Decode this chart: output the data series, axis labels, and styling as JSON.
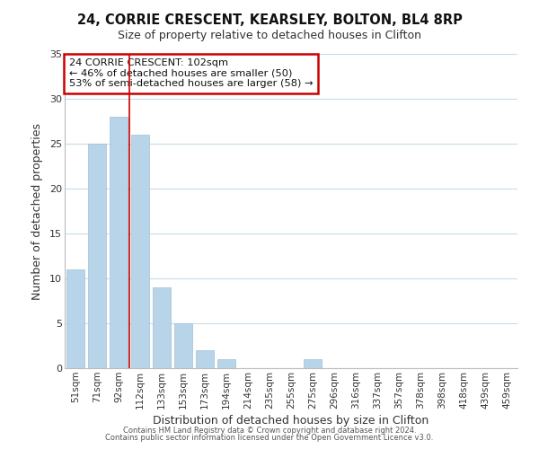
{
  "title1": "24, CORRIE CRESCENT, KEARSLEY, BOLTON, BL4 8RP",
  "title2": "Size of property relative to detached houses in Clifton",
  "xlabel": "Distribution of detached houses by size in Clifton",
  "ylabel": "Number of detached properties",
  "categories": [
    "51sqm",
    "71sqm",
    "92sqm",
    "112sqm",
    "133sqm",
    "153sqm",
    "173sqm",
    "194sqm",
    "214sqm",
    "235sqm",
    "255sqm",
    "275sqm",
    "296sqm",
    "316sqm",
    "337sqm",
    "357sqm",
    "378sqm",
    "398sqm",
    "418sqm",
    "439sqm",
    "459sqm"
  ],
  "values": [
    11,
    25,
    28,
    26,
    9,
    5,
    2,
    1,
    0,
    0,
    0,
    1,
    0,
    0,
    0,
    0,
    0,
    0,
    0,
    0,
    0
  ],
  "bar_color": "#b8d4e8",
  "bar_edge_color": "#a0bfd8",
  "marker_line_color": "#cc0000",
  "annotation_line1": "24 CORRIE CRESCENT: 102sqm",
  "annotation_line2": "← 46% of detached houses are smaller (50)",
  "annotation_line3": "53% of semi-detached houses are larger (58) →",
  "annotation_box_color": "#ffffff",
  "annotation_box_edge": "#cc0000",
  "ylim": [
    0,
    35
  ],
  "yticks": [
    0,
    5,
    10,
    15,
    20,
    25,
    30,
    35
  ],
  "footer1": "Contains HM Land Registry data © Crown copyright and database right 2024.",
  "footer2": "Contains public sector information licensed under the Open Government Licence v3.0.",
  "background_color": "#ffffff",
  "grid_color": "#c8dcea"
}
